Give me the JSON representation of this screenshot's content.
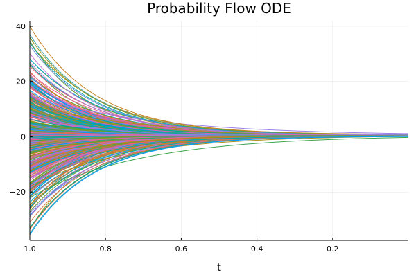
{
  "chart_data": {
    "type": "line",
    "title": "Probability Flow ODE",
    "xlabel": "t",
    "ylabel": "",
    "x_reversed": true,
    "xlim": [
      0.0,
      1.0
    ],
    "ylim": [
      -37.5,
      42
    ],
    "x_ticks": [
      1.0,
      0.8,
      0.6,
      0.4,
      0.2
    ],
    "x_tick_labels": [
      "1.0",
      "0.8",
      "0.6",
      "0.4",
      "0.2"
    ],
    "y_ticks": [
      40,
      20,
      0,
      -20
    ],
    "y_tick_labels": [
      "40",
      "20",
      "0",
      "−20"
    ],
    "grid": true,
    "legend": "none",
    "series_description": "Hundreds of trajectories starting at t = 1.0 with values spread from about −35 to 40, each decaying toward approximately 0.5 as t approaches 0.",
    "series_count": 480,
    "start_value_range": [
      -35.5,
      40
    ],
    "end_value": 0.5,
    "highlighted_series": [
      {
        "start": 40,
        "end": 0.8,
        "color": "#c68125"
      },
      {
        "start": 37,
        "end": 0.6,
        "color": "#3da4ab"
      },
      {
        "start": 36,
        "end": 0.7,
        "color": "#8e971d"
      },
      {
        "start": 34,
        "end": 0.6,
        "color": "#00a9ad"
      },
      {
        "start": 33,
        "end": 0.5,
        "color": "#6f85d5"
      },
      {
        "start": 27,
        "end": 0.6,
        "color": "#a77fd8"
      },
      {
        "start": -29,
        "end": 0.3,
        "color": "#c973bd"
      },
      {
        "start": -31,
        "end": 0.3,
        "color": "#d5774c"
      },
      {
        "start": -33,
        "end": 0.2,
        "color": "#00a98d"
      },
      {
        "start": -35,
        "end": 0.3,
        "color": "#3da4ab"
      },
      {
        "start": -35.5,
        "end": 0.2,
        "color": "#009af9"
      }
    ],
    "palette": [
      "#009af9",
      "#e26f46",
      "#3da44d",
      "#c271d2",
      "#ac8e18",
      "#00a9ad",
      "#ed5e93",
      "#c68125",
      "#00a98d",
      "#8e971d",
      "#00a9cd",
      "#9b7fe9",
      "#618df6",
      "#f05f73",
      "#dd64b5",
      "#6b9e33"
    ]
  }
}
